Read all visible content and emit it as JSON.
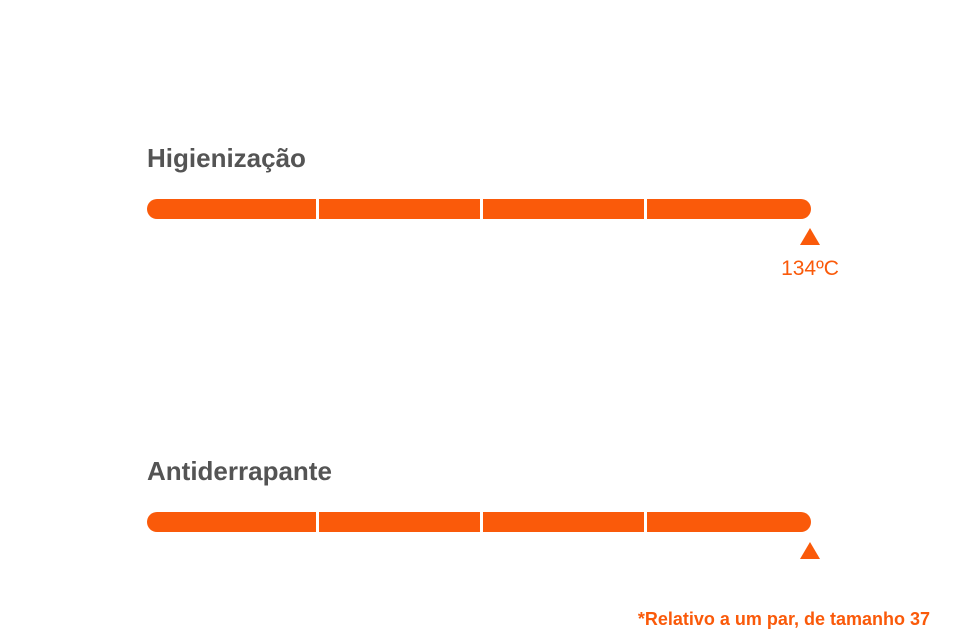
{
  "items": [
    {
      "title": "Higienização",
      "marker_label": "134ºC"
    },
    {
      "title": "Antiderrapante"
    }
  ],
  "footnote": "*Relativo a um par, de tamanho 37"
}
